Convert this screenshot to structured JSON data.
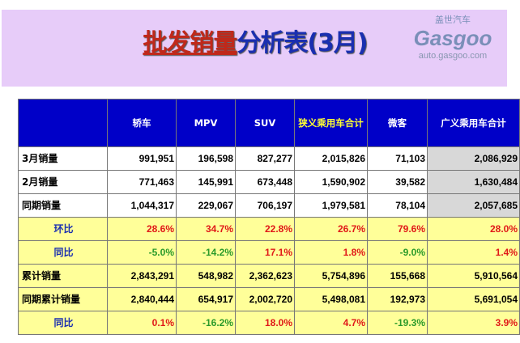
{
  "title": {
    "highlight": "批发销量",
    "rest": "分析表(3月)"
  },
  "table": {
    "headers": [
      "",
      "轿车",
      "MPV",
      "SUV",
      "狭义乘用车合计",
      "微客",
      "广义乘用车合计"
    ],
    "rows": [
      {
        "label": "3月销量",
        "values": [
          "991,951",
          "196,598",
          "827,277",
          "2,015,826",
          "71,103",
          "2,086,929"
        ]
      },
      {
        "label": "2月销量",
        "values": [
          "771,463",
          "145,991",
          "673,448",
          "1,590,902",
          "39,582",
          "1,630,484"
        ]
      },
      {
        "label": "同期销量",
        "values": [
          "1,044,317",
          "229,067",
          "706,197",
          "1,979,581",
          "78,104",
          "2,057,685"
        ]
      },
      {
        "label": "环比",
        "values": [
          "28.6%",
          "34.7%",
          "22.8%",
          "26.7%",
          "79.6%",
          "28.0%"
        ]
      },
      {
        "label": "同比",
        "values": [
          "-5.0%",
          "-14.2%",
          "17.1%",
          "1.8%",
          "-9.0%",
          "1.4%"
        ]
      },
      {
        "label": "累计销量",
        "values": [
          "2,843,291",
          "548,982",
          "2,362,623",
          "5,754,896",
          "155,668",
          "5,910,564"
        ]
      },
      {
        "label": "同期累计销量",
        "values": [
          "2,840,444",
          "654,917",
          "2,002,720",
          "5,498,081",
          "192,973",
          "5,691,054"
        ]
      },
      {
        "label": "同比",
        "values": [
          "0.1%",
          "-16.2%",
          "18.0%",
          "4.7%",
          "-19.3%",
          "3.9%"
        ]
      }
    ]
  },
  "watermark": {
    "cn": "盖世汽车",
    "brand": "Gasgoo",
    "url": "auto.gasgoo.com"
  },
  "colors": {
    "header_bg": "#0000c8",
    "highlight_row": "#ffff99",
    "positive": "#e01818",
    "negative": "#2a9a2a"
  }
}
